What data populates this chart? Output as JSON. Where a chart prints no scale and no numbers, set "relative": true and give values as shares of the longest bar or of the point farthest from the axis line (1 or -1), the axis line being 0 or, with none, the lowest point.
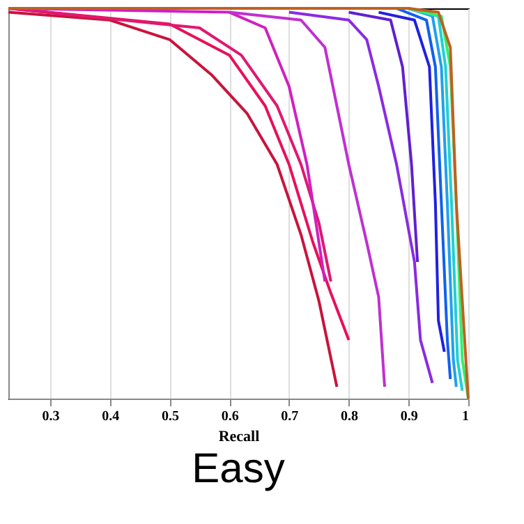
{
  "chart_data": {
    "type": "line",
    "title": "Easy",
    "xlabel": "Recall",
    "relative": true,
    "xlim": [
      0.23,
      1.0
    ],
    "xticks": [
      0.3,
      0.4,
      0.5,
      0.6,
      0.7,
      0.8,
      0.9,
      1
    ],
    "grid": "x",
    "legend": false,
    "line_style": "solid",
    "marker": "none",
    "series": [
      {
        "color": "#c8143c",
        "x": [
          0.23,
          0.4,
          0.5,
          0.57,
          0.63,
          0.68,
          0.72,
          0.75,
          0.78
        ],
        "values": [
          0.99,
          0.97,
          0.92,
          0.83,
          0.73,
          0.6,
          0.42,
          0.25,
          0.03
        ]
      },
      {
        "color": "#e8105a",
        "x": [
          0.23,
          0.5,
          0.6,
          0.66,
          0.7,
          0.74,
          0.77,
          0.8
        ],
        "values": [
          1,
          0.96,
          0.88,
          0.75,
          0.6,
          0.4,
          0.27,
          0.15
        ]
      },
      {
        "color": "#e01870",
        "x": [
          0.23,
          0.55,
          0.62,
          0.68,
          0.72,
          0.75,
          0.77
        ],
        "values": [
          1,
          0.95,
          0.88,
          0.75,
          0.6,
          0.45,
          0.3
        ]
      },
      {
        "color": "#d020c0",
        "x": [
          0.23,
          0.6,
          0.66,
          0.7,
          0.73,
          0.76
        ],
        "values": [
          1,
          0.99,
          0.95,
          0.8,
          0.6,
          0.3
        ]
      },
      {
        "color": "#c030d0",
        "x": [
          0.6,
          0.72,
          0.76,
          0.78,
          0.8,
          0.83,
          0.85,
          0.86
        ],
        "values": [
          0.99,
          0.97,
          0.9,
          0.75,
          0.6,
          0.4,
          0.26,
          0.03
        ]
      },
      {
        "color": "#8a2be2",
        "x": [
          0.7,
          0.8,
          0.83,
          0.85,
          0.88,
          0.91,
          0.92,
          0.94
        ],
        "values": [
          0.99,
          0.97,
          0.92,
          0.8,
          0.6,
          0.35,
          0.15,
          0.04
        ]
      },
      {
        "color": "#6020d0",
        "x": [
          0.8,
          0.87,
          0.89,
          0.905,
          0.915
        ],
        "values": [
          0.99,
          0.97,
          0.85,
          0.6,
          0.35
        ]
      },
      {
        "color": "#2020e0",
        "x": [
          0.85,
          0.91,
          0.935,
          0.945,
          0.95,
          0.96
        ],
        "values": [
          0.99,
          0.97,
          0.85,
          0.5,
          0.2,
          0.12
        ]
      },
      {
        "color": "#1060f0",
        "x": [
          0.88,
          0.93,
          0.945,
          0.955,
          0.965,
          0.97
        ],
        "values": [
          1,
          0.97,
          0.85,
          0.5,
          0.15,
          0.05
        ]
      },
      {
        "color": "#20a0f0",
        "x": [
          0.9,
          0.94,
          0.955,
          0.965,
          0.975,
          0.98
        ],
        "values": [
          1,
          0.98,
          0.85,
          0.5,
          0.1,
          0.03
        ]
      },
      {
        "color": "#20d0d0",
        "x": [
          0.9,
          0.95,
          0.962,
          0.972,
          0.982,
          0.99
        ],
        "values": [
          1,
          0.98,
          0.85,
          0.5,
          0.1,
          0.02
        ]
      },
      {
        "color": "#30f070",
        "x": [
          0.9,
          0.955,
          0.97,
          0.98,
          0.99,
          1.0
        ],
        "values": [
          1,
          0.98,
          0.85,
          0.5,
          0.1,
          0
        ]
      },
      {
        "color": "#c06020",
        "x": [
          0.23,
          0.9,
          0.95,
          0.97,
          0.98,
          1.0
        ],
        "values": [
          1,
          1,
          0.99,
          0.9,
          0.5,
          0
        ]
      }
    ]
  }
}
